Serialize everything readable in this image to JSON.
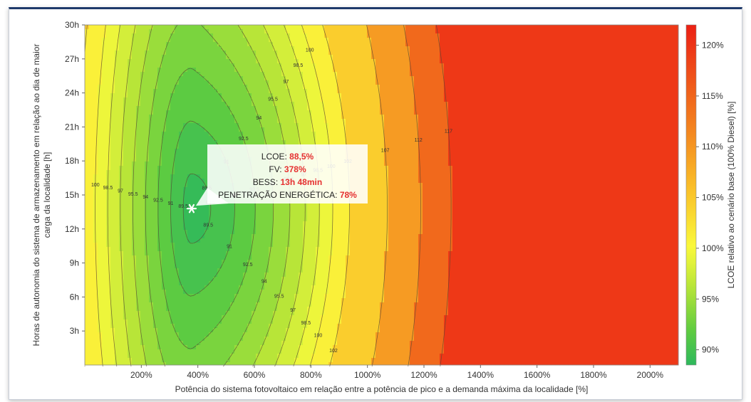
{
  "chart_data": {
    "type": "heatmap",
    "xlabel": "Potência do sistema fotovoltaico em relação entre a potência de pico e a demanda máxima da localidade [%]",
    "ylabel_line1": "Horas de autonomia do sistema de armazenamento em relação ao dia de maior",
    "ylabel_line2": "carga da localidade [h]",
    "colorbar_label": "LCOE relativo ao cenário base (100% Diesel) [%]",
    "xlim": [
      0,
      2100
    ],
    "ylim": [
      0,
      30
    ],
    "x_ticks": [
      200,
      400,
      600,
      800,
      1000,
      1200,
      1400,
      1600,
      1800,
      2000
    ],
    "x_tick_labels": [
      "200%",
      "400%",
      "600%",
      "800%",
      "1000%",
      "1200%",
      "1400%",
      "1600%",
      "1800%",
      "2000%"
    ],
    "y_ticks": [
      3,
      6,
      9,
      12,
      15,
      18,
      21,
      24,
      27,
      30
    ],
    "y_tick_labels": [
      "3h",
      "6h",
      "9h",
      "12h",
      "15h",
      "18h",
      "21h",
      "24h",
      "27h",
      "30h"
    ],
    "colorbar_range": [
      88.5,
      122
    ],
    "colorbar_ticks": [
      90,
      95,
      100,
      105,
      110,
      115,
      120
    ],
    "colorbar_tick_labels": [
      "90%",
      "95%",
      "100%",
      "105%",
      "110%",
      "115%",
      "120%"
    ],
    "contour_levels": [
      89.5,
      91,
      92.5,
      94,
      95.5,
      97,
      98.5,
      100,
      102,
      107,
      112,
      117
    ],
    "contour_level_labels": [
      "89.5",
      "91",
      "92.5",
      "94",
      "95.5",
      "97",
      "98.5",
      "100",
      "102",
      "107",
      "112",
      "117"
    ],
    "optimum": {
      "x": 378,
      "y": 13.8
    },
    "annotation": {
      "lines": [
        {
          "label": "LCOE: ",
          "value": "88,5%"
        },
        {
          "label": "FV: ",
          "value": "378%"
        },
        {
          "label": "BESS: ",
          "value": "13h 48min"
        },
        {
          "label": "PENETRAÇÃO ENERGÉTICA: ",
          "value": "78%"
        }
      ]
    },
    "grid": true
  }
}
